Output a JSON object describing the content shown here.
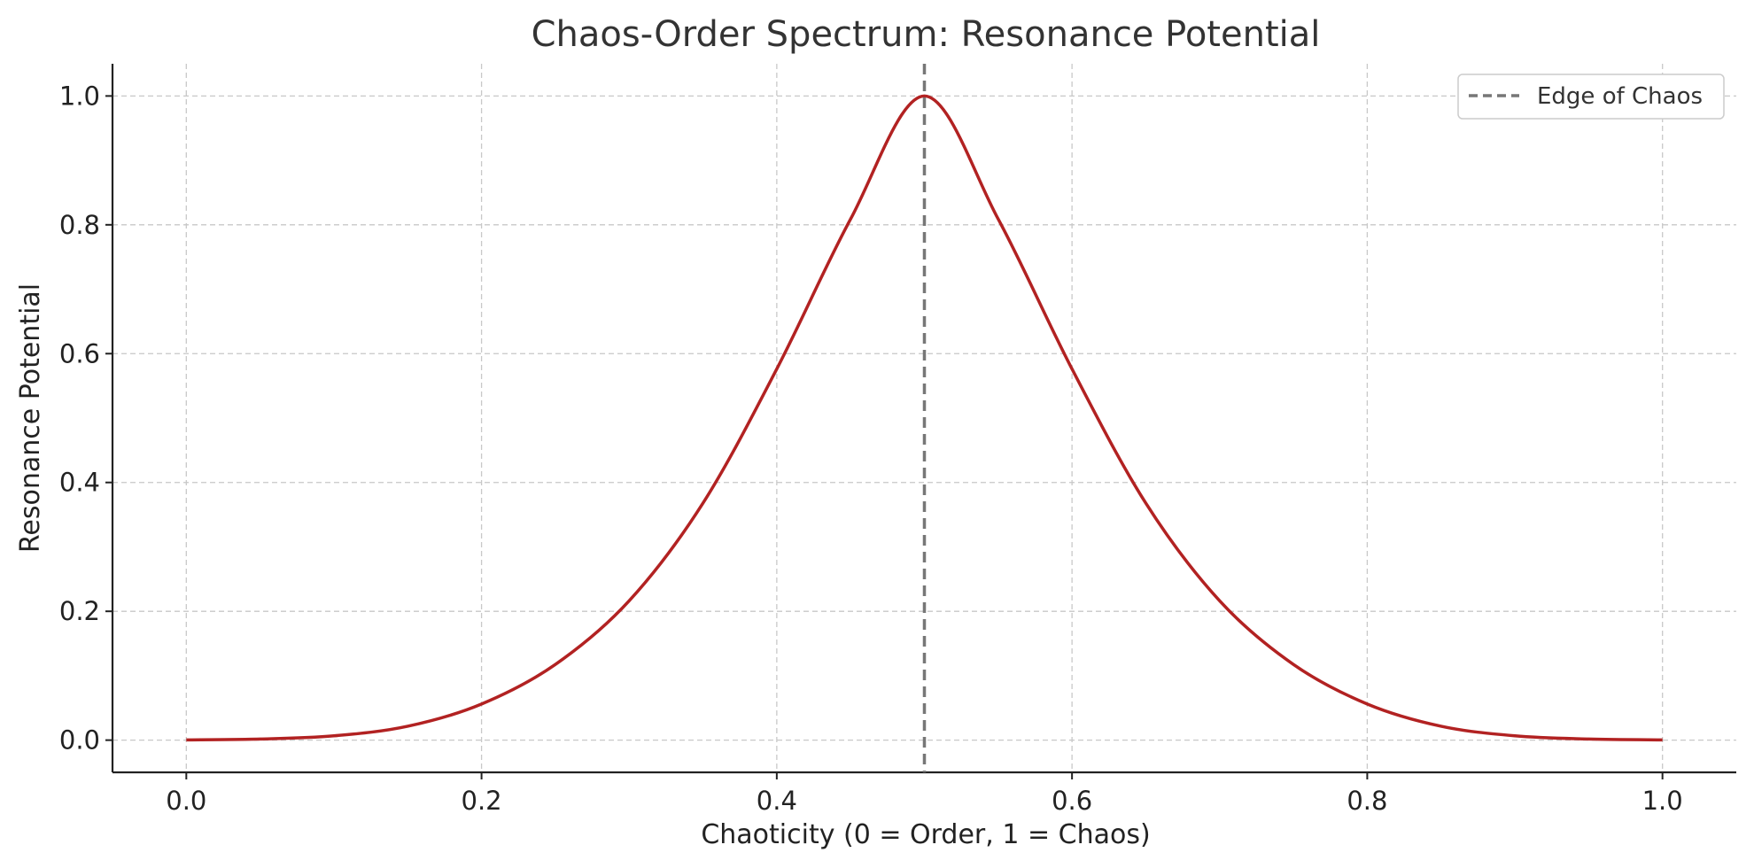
{
  "chart_data": {
    "type": "line",
    "title": "Chaos-Order Spectrum: Resonance Potential",
    "xlabel": "Chaoticity (0 = Order, 1 = Chaos)",
    "ylabel": "Resonance Potential",
    "xlim": [
      -0.05,
      1.05
    ],
    "ylim": [
      -0.05,
      1.05
    ],
    "xticks": [
      "0.0",
      "0.2",
      "0.4",
      "0.6",
      "0.8",
      "1.0"
    ],
    "yticks": [
      "0.0",
      "0.2",
      "0.4",
      "0.6",
      "0.8",
      "1.0"
    ],
    "grid": true,
    "legend_position": "top-right",
    "series": [
      {
        "color": "#b22222",
        "x": [
          0.0,
          0.05,
          0.1,
          0.15,
          0.2,
          0.25,
          0.3,
          0.35,
          0.4,
          0.45,
          0.5,
          0.55,
          0.6,
          0.65,
          0.7,
          0.75,
          0.8,
          0.85,
          0.9,
          0.95,
          1.0
        ],
        "y": [
          0.0004,
          0.0017,
          0.0067,
          0.0216,
          0.0561,
          0.1175,
          0.2163,
          0.3679,
          0.5762,
          0.8089,
          1.0,
          0.8089,
          0.5762,
          0.3679,
          0.2163,
          0.1175,
          0.0561,
          0.0216,
          0.0067,
          0.0017,
          0.0004
        ]
      }
    ],
    "reference_line": {
      "name": "Edge of Chaos",
      "x": 0.5,
      "color": "#777777",
      "style": "dashed"
    }
  }
}
